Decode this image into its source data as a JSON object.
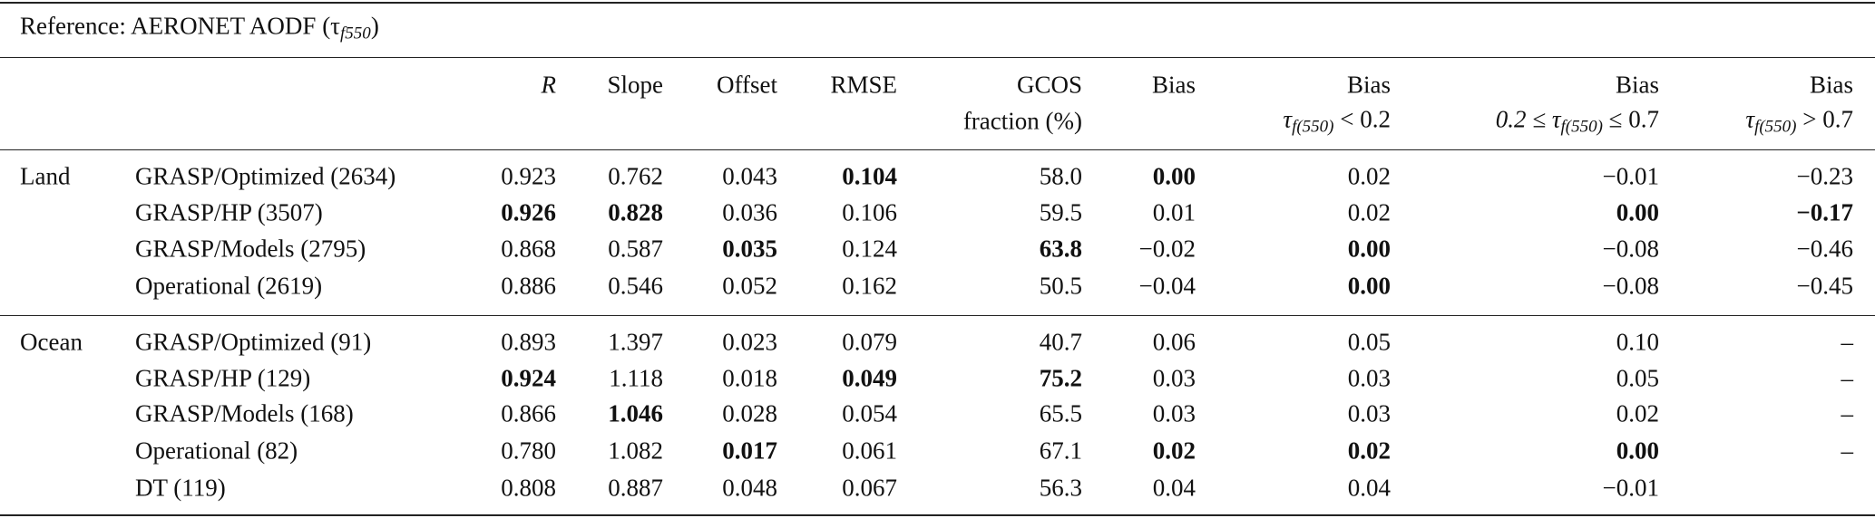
{
  "header": {
    "title": {
      "text": "Reference: AERONET AODF (τ",
      "sub": "f550",
      "end": ")"
    }
  },
  "table": {
    "columns": [
      {
        "line1": "R",
        "italic": true
      },
      {
        "line1": "Slope"
      },
      {
        "line1": "Offset"
      },
      {
        "line1": "RMSE"
      },
      {
        "line1": "GCOS",
        "line2": "fraction (%)"
      },
      {
        "line1": "Bias"
      },
      {
        "line1": "Bias",
        "pre": "τ",
        "sub": "f(550)",
        "post": " < 0.2"
      },
      {
        "line1": "Bias",
        "pre": "0.2 ≤ τ",
        "sub": "f(550)",
        "post": " ≤ 0.7"
      },
      {
        "line1": "Bias",
        "pre": "τ",
        "sub": "f(550)",
        "post": " > 0.7"
      }
    ],
    "groups": [
      {
        "name": "Land",
        "rows": [
          {
            "label": "GRASP/Optimized (2634)",
            "cells": [
              {
                "text": "0.923"
              },
              {
                "text": "0.762"
              },
              {
                "text": "0.043"
              },
              {
                "text": "0.104",
                "bold": true
              },
              {
                "text": "58.0"
              },
              {
                "text": "0.00",
                "bold": true
              },
              {
                "text": "0.02"
              },
              {
                "text": "−0.01"
              },
              {
                "text": "−0.23"
              }
            ]
          },
          {
            "label": "GRASP/HP (3507)",
            "cells": [
              {
                "text": "0.926",
                "bold": true
              },
              {
                "text": "0.828",
                "bold": true
              },
              {
                "text": "0.036"
              },
              {
                "text": "0.106"
              },
              {
                "text": "59.5"
              },
              {
                "text": "0.01"
              },
              {
                "text": "0.02"
              },
              {
                "text": "0.00",
                "bold": true
              },
              {
                "text": "−0.17",
                "bold": true
              }
            ]
          },
          {
            "label": "GRASP/Models (2795)",
            "cells": [
              {
                "text": "0.868"
              },
              {
                "text": "0.587"
              },
              {
                "text": "0.035",
                "bold": true
              },
              {
                "text": "0.124"
              },
              {
                "text": "63.8",
                "bold": true
              },
              {
                "text": "−0.02"
              },
              {
                "text": "0.00",
                "bold": true
              },
              {
                "text": "−0.08"
              },
              {
                "text": "−0.46"
              }
            ]
          },
          {
            "label": "Operational (2619)",
            "cells": [
              {
                "text": "0.886"
              },
              {
                "text": "0.546"
              },
              {
                "text": "0.052"
              },
              {
                "text": "0.162"
              },
              {
                "text": "50.5"
              },
              {
                "text": "−0.04"
              },
              {
                "text": "0.00",
                "bold": true
              },
              {
                "text": "−0.08"
              },
              {
                "text": "−0.45"
              }
            ]
          }
        ]
      },
      {
        "name": "Ocean",
        "rows": [
          {
            "label": "GRASP/Optimized (91)",
            "cells": [
              {
                "text": "0.893"
              },
              {
                "text": "1.397"
              },
              {
                "text": "0.023"
              },
              {
                "text": "0.079"
              },
              {
                "text": "40.7"
              },
              {
                "text": "0.06"
              },
              {
                "text": "0.05"
              },
              {
                "text": "0.10"
              },
              {
                "text": "–"
              }
            ]
          },
          {
            "label": "GRASP/HP (129)",
            "cells": [
              {
                "text": "0.924",
                "bold": true
              },
              {
                "text": "1.118"
              },
              {
                "text": "0.018"
              },
              {
                "text": "0.049",
                "bold": true
              },
              {
                "text": "75.2",
                "bold": true
              },
              {
                "text": "0.03"
              },
              {
                "text": "0.03"
              },
              {
                "text": "0.05"
              },
              {
                "text": "–"
              }
            ]
          },
          {
            "label": "GRASP/Models (168)",
            "cells": [
              {
                "text": "0.866"
              },
              {
                "text": "1.046",
                "bold": true
              },
              {
                "text": "0.028"
              },
              {
                "text": "0.054"
              },
              {
                "text": "65.5"
              },
              {
                "text": "0.03"
              },
              {
                "text": "0.03"
              },
              {
                "text": "0.02"
              },
              {
                "text": "–"
              }
            ]
          },
          {
            "label": "Operational (82)",
            "cells": [
              {
                "text": "0.780"
              },
              {
                "text": "1.082"
              },
              {
                "text": "0.017",
                "bold": true
              },
              {
                "text": "0.061"
              },
              {
                "text": "67.1"
              },
              {
                "text": "0.02",
                "bold": true
              },
              {
                "text": "0.02",
                "bold": true
              },
              {
                "text": "0.00",
                "bold": true
              },
              {
                "text": "–"
              }
            ]
          },
          {
            "label": "DT (119)",
            "cells": [
              {
                "text": "0.808"
              },
              {
                "text": "0.887"
              },
              {
                "text": "0.048"
              },
              {
                "text": "0.067"
              },
              {
                "text": "56.3"
              },
              {
                "text": "0.04"
              },
              {
                "text": "0.04"
              },
              {
                "text": "−0.01"
              },
              {
                "text": ""
              }
            ]
          }
        ]
      }
    ]
  }
}
